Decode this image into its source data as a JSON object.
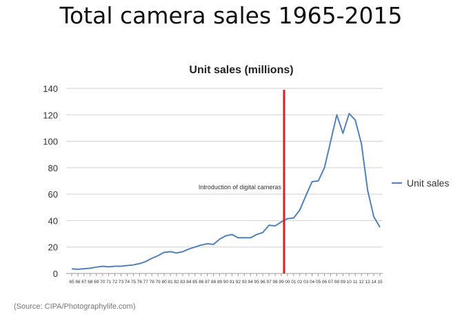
{
  "page": {
    "title": "Total camera sales 1965-2015",
    "source": "(Source: CIPA/Photographylife.com)"
  },
  "chart_data": {
    "type": "line",
    "title": "Unit sales (millions)",
    "xlabel": "",
    "ylabel": "",
    "ylim": [
      0,
      140
    ],
    "yticks": [
      0,
      20,
      40,
      60,
      80,
      100,
      120,
      140
    ],
    "grid": true,
    "legend": "right",
    "categories": [
      "65",
      "66",
      "67",
      "68",
      "69",
      "70",
      "71",
      "72",
      "73",
      "74",
      "75",
      "76",
      "77",
      "78",
      "79",
      "80",
      "81",
      "82",
      "83",
      "84",
      "85",
      "86",
      "87",
      "88",
      "89",
      "90",
      "91",
      "92",
      "93",
      "94",
      "95",
      "96",
      "97",
      "98",
      "99",
      "00",
      "01",
      "02",
      "03",
      "04",
      "05",
      "06",
      "07",
      "08",
      "09",
      "10",
      "11",
      "12",
      "13",
      "14",
      "15"
    ],
    "series": [
      {
        "name": "Unit sales",
        "color": "#4f81bd",
        "values": [
          3.5,
          3.2,
          3.6,
          4,
          4.8,
          5.5,
          5,
          5.5,
          5.5,
          6,
          6.5,
          7.5,
          9,
          11.5,
          13.5,
          16,
          16.5,
          15.5,
          16.5,
          18.5,
          20,
          21.5,
          22.5,
          22,
          26,
          28.5,
          29.5,
          27,
          27,
          27,
          29.5,
          31,
          36.5,
          36,
          39,
          41.5,
          42,
          48,
          59,
          69.5,
          70,
          80,
          100,
          120,
          106,
          121,
          116,
          98,
          63,
          43,
          35
        ]
      }
    ],
    "annotation": {
      "text": "Introduction of digital cameras",
      "x": "99",
      "color": "#e02020"
    }
  }
}
